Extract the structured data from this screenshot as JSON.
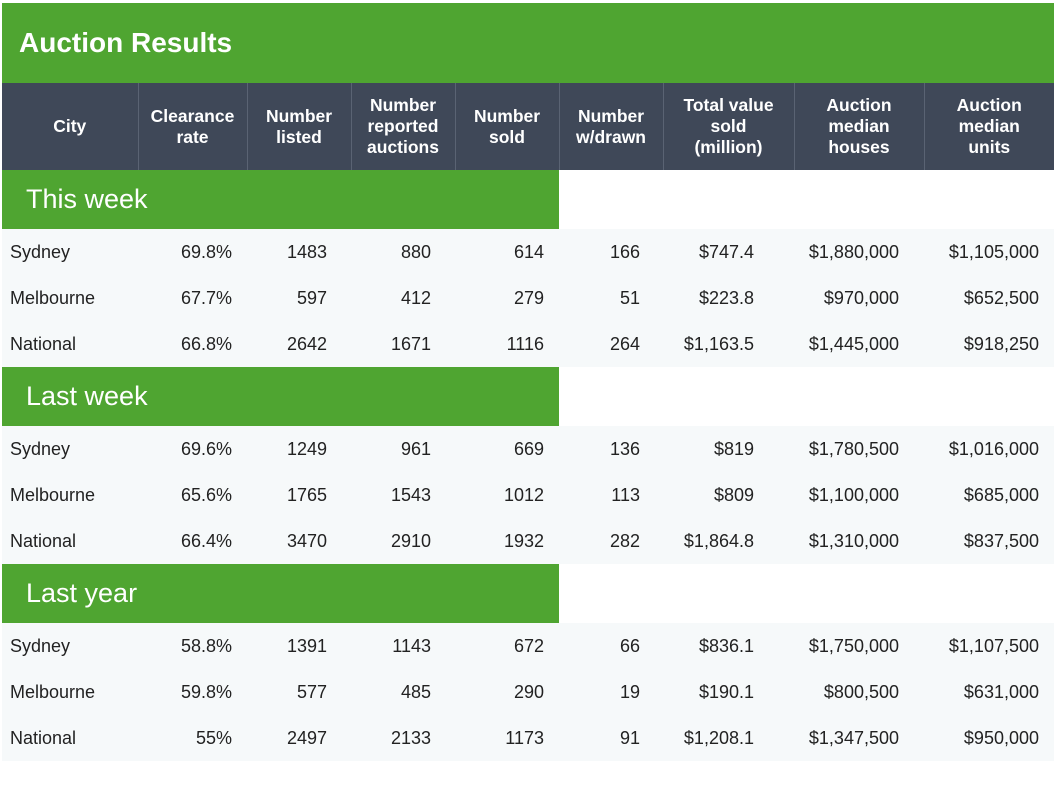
{
  "title": "Auction Results",
  "colors": {
    "green": "#4fa531",
    "header": "#3f4858",
    "row_bg": "#f6f9fa"
  },
  "columns": [
    [
      "City"
    ],
    [
      "Clearance",
      "rate"
    ],
    [
      "Number",
      "listed"
    ],
    [
      "Number",
      "reported",
      "auctions"
    ],
    [
      "Number",
      "sold"
    ],
    [
      "Number",
      "w/drawn"
    ],
    [
      "Total value",
      "sold",
      "(million)"
    ],
    [
      "Auction",
      "median",
      "houses"
    ],
    [
      "Auction",
      "median",
      "units"
    ]
  ],
  "sections": [
    {
      "label": "This week",
      "rows": [
        [
          "Sydney",
          "69.8%",
          "1483",
          "880",
          "614",
          "166",
          "$747.4",
          "$1,880,000",
          "$1,105,000"
        ],
        [
          "Melbourne",
          "67.7%",
          "597",
          "412",
          "279",
          "51",
          "$223.8",
          "$970,000",
          "$652,500"
        ],
        [
          "National",
          "66.8%",
          "2642",
          "1671",
          "1116",
          "264",
          "$1,163.5",
          "$1,445,000",
          "$918,250"
        ]
      ]
    },
    {
      "label": "Last week",
      "rows": [
        [
          "Sydney",
          "69.6%",
          "1249",
          "961",
          "669",
          "136",
          "$819",
          "$1,780,500",
          "$1,016,000"
        ],
        [
          "Melbourne",
          "65.6%",
          "1765",
          "1543",
          "1012",
          "113",
          "$809",
          "$1,100,000",
          "$685,000"
        ],
        [
          "National",
          "66.4%",
          "3470",
          "2910",
          "1932",
          "282",
          "$1,864.8",
          "$1,310,000",
          "$837,500"
        ]
      ]
    },
    {
      "label": "Last year",
      "rows": [
        [
          "Sydney",
          "58.8%",
          "1391",
          "1143",
          "672",
          "66",
          "$836.1",
          "$1,750,000",
          "$1,107,500"
        ],
        [
          "Melbourne",
          "59.8%",
          "577",
          "485",
          "290",
          "19",
          "$190.1",
          "$800,500",
          "$631,000"
        ],
        [
          "National",
          "55%",
          "2497",
          "2133",
          "1173",
          "91",
          "$1,208.1",
          "$1,347,500",
          "$950,000"
        ]
      ]
    }
  ]
}
